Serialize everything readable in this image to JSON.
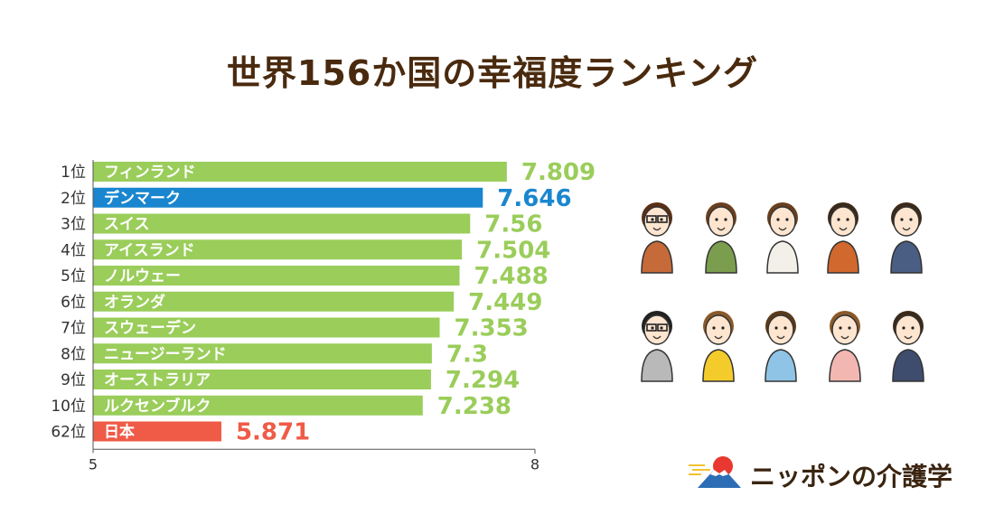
{
  "title": "世界156か国の幸福度ランキング",
  "colors": {
    "bar_default": "#9acd5a",
    "bar_highlight": "#1a86cf",
    "bar_japan": "#ef5b47",
    "text_highlight": "#1a86cf",
    "text_japan": "#ef5b47",
    "text_default": "#9acd5a"
  },
  "chart_data": {
    "type": "bar",
    "orientation": "horizontal",
    "xlim": [
      5,
      8
    ],
    "xticks": [
      "5",
      "8"
    ],
    "rows": [
      {
        "rank": "1位",
        "country": "フィンランド",
        "value": 7.809,
        "label": "7.809",
        "style": "default"
      },
      {
        "rank": "2位",
        "country": "デンマーク",
        "value": 7.646,
        "label": "7.646",
        "style": "highlight"
      },
      {
        "rank": "3位",
        "country": "スイス",
        "value": 7.56,
        "label": "7.56",
        "style": "default"
      },
      {
        "rank": "4位",
        "country": "アイスランド",
        "value": 7.504,
        "label": "7.504",
        "style": "default"
      },
      {
        "rank": "5位",
        "country": "ノルウェー",
        "value": 7.488,
        "label": "7.488",
        "style": "default"
      },
      {
        "rank": "6位",
        "country": "オランダ",
        "value": 7.449,
        "label": "7.449",
        "style": "default"
      },
      {
        "rank": "7位",
        "country": "スウェーデン",
        "value": 7.353,
        "label": "7.353",
        "style": "default"
      },
      {
        "rank": "8位",
        "country": "ニュージーランド",
        "value": 7.3,
        "label": "7.3",
        "style": "default"
      },
      {
        "rank": "9位",
        "country": "オーストラリア",
        "value": 7.294,
        "label": "7.294",
        "style": "default"
      },
      {
        "rank": "10位",
        "country": "ルクセンブルク",
        "value": 7.238,
        "label": "7.238",
        "style": "default"
      },
      {
        "rank": "62位",
        "country": "日本",
        "value": 5.871,
        "label": "5.871",
        "style": "japan"
      }
    ]
  },
  "logo": {
    "text": "ニッポンの介護学",
    "icon": "mount-fuji-sun-icon"
  },
  "illustration": {
    "icon": "people-group-icon"
  }
}
